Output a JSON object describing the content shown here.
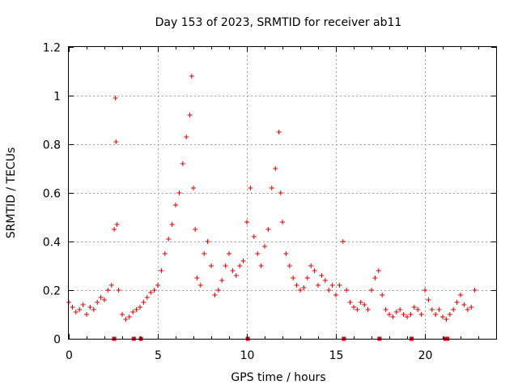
{
  "chart_data": {
    "type": "scatter",
    "title": "Day 153 of 2023, SRMTID for receiver ab11",
    "xlabel": "GPS time / hours",
    "ylabel": "SRMTID / TECUs",
    "xlim": [
      0,
      24
    ],
    "ylim": [
      0,
      1.2
    ],
    "grid": true,
    "marker": "+",
    "color": "#e00000",
    "xticks": [
      0,
      5,
      10,
      15,
      20
    ],
    "xtick_labels": [
      "0",
      "5",
      "10",
      "15",
      "20"
    ],
    "yticks": [
      0,
      0.2,
      0.4,
      0.6,
      0.8,
      1,
      1.2
    ],
    "ytick_labels": [
      "0",
      "0.2",
      "0.4",
      "0.6",
      "0.8",
      "1",
      "1.2"
    ],
    "series": [
      {
        "name": "SRMTID",
        "x": [
          0.0,
          0.2,
          0.4,
          0.6,
          0.8,
          1.0,
          1.2,
          1.4,
          1.6,
          1.8,
          2.0,
          2.2,
          2.4,
          2.55,
          2.62,
          2.65,
          2.7,
          2.8,
          3.0,
          3.2,
          3.4,
          3.6,
          3.8,
          4.0,
          4.2,
          4.4,
          4.6,
          4.8,
          5.0,
          5.2,
          5.4,
          5.6,
          5.8,
          6.0,
          6.2,
          6.4,
          6.6,
          6.8,
          6.9,
          7.0,
          7.1,
          7.2,
          7.4,
          7.6,
          7.8,
          8.0,
          8.2,
          8.4,
          8.6,
          8.8,
          9.0,
          9.2,
          9.4,
          9.6,
          9.8,
          10.0,
          10.2,
          10.4,
          10.6,
          10.8,
          11.0,
          11.2,
          11.4,
          11.6,
          11.8,
          11.9,
          12.0,
          12.2,
          12.4,
          12.6,
          12.8,
          13.0,
          13.2,
          13.4,
          13.6,
          13.8,
          14.0,
          14.2,
          14.4,
          14.6,
          14.8,
          15.0,
          15.2,
          15.4,
          15.6,
          15.8,
          16.0,
          16.2,
          16.4,
          16.6,
          16.8,
          17.0,
          17.2,
          17.4,
          17.6,
          17.8,
          18.0,
          18.2,
          18.4,
          18.6,
          18.8,
          19.0,
          19.2,
          19.4,
          19.6,
          19.8,
          20.0,
          20.2,
          20.4,
          20.6,
          20.8,
          21.0,
          21.2,
          21.4,
          21.6,
          21.8,
          22.0,
          22.2,
          22.4,
          22.6,
          22.8
        ],
        "y": [
          0.15,
          0.13,
          0.11,
          0.12,
          0.14,
          0.1,
          0.13,
          0.12,
          0.15,
          0.17,
          0.16,
          0.2,
          0.22,
          0.45,
          0.99,
          0.81,
          0.47,
          0.2,
          0.1,
          0.08,
          0.09,
          0.11,
          0.12,
          0.13,
          0.15,
          0.17,
          0.19,
          0.2,
          0.22,
          0.28,
          0.35,
          0.41,
          0.47,
          0.55,
          0.6,
          0.72,
          0.83,
          0.92,
          1.08,
          0.62,
          0.45,
          0.25,
          0.22,
          0.35,
          0.4,
          0.3,
          0.18,
          0.2,
          0.24,
          0.3,
          0.35,
          0.28,
          0.26,
          0.3,
          0.32,
          0.48,
          0.62,
          0.42,
          0.35,
          0.3,
          0.38,
          0.45,
          0.62,
          0.7,
          0.85,
          0.6,
          0.48,
          0.35,
          0.3,
          0.25,
          0.22,
          0.2,
          0.21,
          0.25,
          0.3,
          0.28,
          0.22,
          0.26,
          0.24,
          0.2,
          0.22,
          0.18,
          0.22,
          0.4,
          0.2,
          0.15,
          0.13,
          0.12,
          0.15,
          0.14,
          0.12,
          0.2,
          0.25,
          0.28,
          0.18,
          0.12,
          0.1,
          0.09,
          0.11,
          0.12,
          0.1,
          0.09,
          0.1,
          0.13,
          0.12,
          0.1,
          0.2,
          0.16,
          0.12,
          0.1,
          0.12,
          0.09,
          0.08,
          0.1,
          0.12,
          0.15,
          0.18,
          0.14,
          0.12,
          0.13,
          0.2
        ]
      }
    ],
    "zero_markers_x": [
      2.55,
      3.65,
      4.05,
      10.05,
      15.45,
      17.45,
      19.25,
      21.15,
      21.25
    ]
  }
}
